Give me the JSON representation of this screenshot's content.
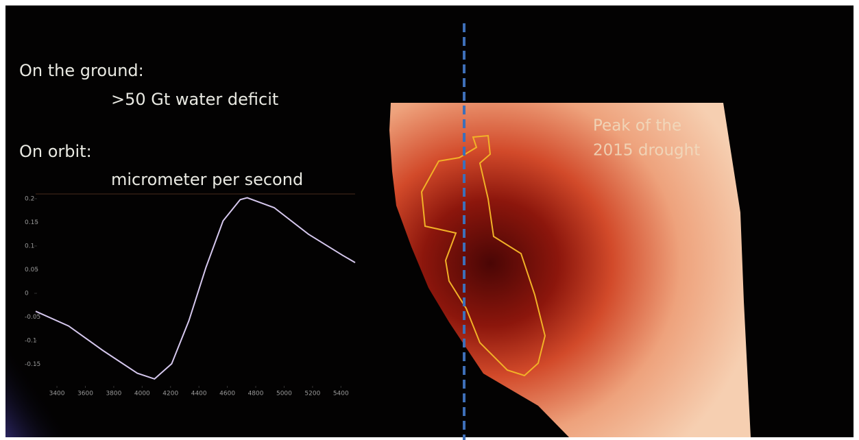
{
  "slide": {
    "ground_heading": "On the ground:",
    "ground_value": ">50 Gt water deficit",
    "orbit_heading": "On orbit:",
    "orbit_value": "micrometer per second",
    "map_label_line1": "Peak of the",
    "map_label_line2": "2015 drought"
  },
  "chart_data": {
    "type": "line",
    "color": "#d6c8ee",
    "x": [
      3250,
      3482,
      3724,
      3966,
      4087,
      4208,
      4329,
      4450,
      4570,
      4691,
      4740,
      4930,
      5171,
      5413,
      5500
    ],
    "values": [
      -0.038,
      -0.069,
      -0.121,
      -0.169,
      -0.181,
      -0.149,
      -0.058,
      0.055,
      0.153,
      0.198,
      0.202,
      0.181,
      0.125,
      0.08,
      0.065
    ],
    "xlim": [
      3250,
      5500
    ],
    "xticks": [
      3400,
      3600,
      3800,
      4000,
      4200,
      4400,
      4600,
      4800,
      5000,
      5200,
      5400
    ],
    "ylim": [
      -0.2,
      0.21
    ],
    "yticks": [
      0.2,
      0.15,
      0.1,
      0.05,
      0,
      -0.05,
      -0.1,
      -0.15
    ]
  }
}
